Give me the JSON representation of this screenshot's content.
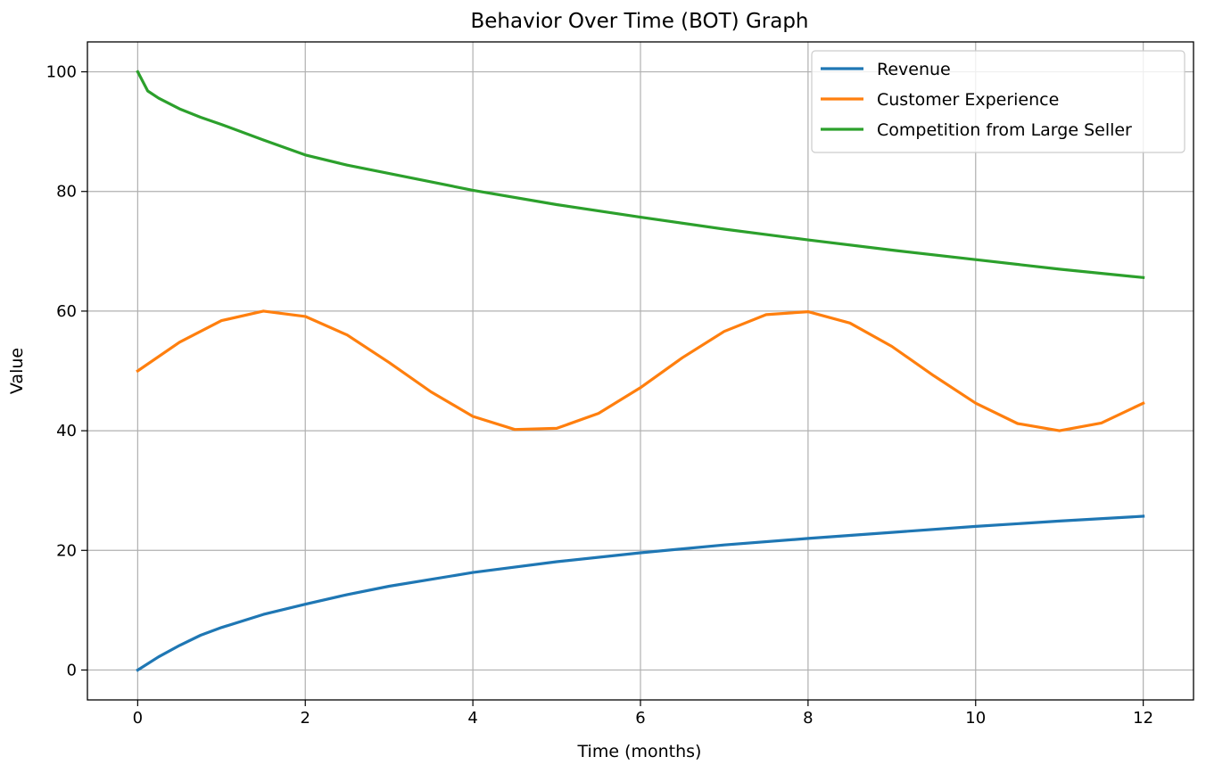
{
  "chart_data": {
    "type": "line",
    "title": "Behavior Over Time (BOT) Graph",
    "xlabel": "Time (months)",
    "ylabel": "Value",
    "xlim": [
      -0.6,
      12.6
    ],
    "ylim": [
      -5,
      105
    ],
    "x_ticks": [
      0,
      2,
      4,
      6,
      8,
      10,
      12
    ],
    "y_ticks": [
      0,
      20,
      40,
      60,
      80,
      100
    ],
    "grid": true,
    "legend_position": "top-right",
    "series": [
      {
        "name": "Revenue",
        "color": "#1f77b4",
        "x": [
          0,
          0.25,
          0.5,
          0.75,
          1,
          1.5,
          2,
          2.5,
          3,
          4,
          5,
          6,
          7,
          8,
          9,
          10,
          11,
          12
        ],
        "y": [
          0,
          2.2,
          4.1,
          5.8,
          7.1,
          9.3,
          11.0,
          12.6,
          14.0,
          16.3,
          18.1,
          19.6,
          20.9,
          22.0,
          23.0,
          24.0,
          24.9,
          25.7
        ]
      },
      {
        "name": "Customer Experience",
        "color": "#ff7f0e",
        "x": [
          0,
          0.5,
          1,
          1.5,
          2,
          2.5,
          3,
          3.5,
          4,
          4.5,
          5,
          5.5,
          6,
          6.5,
          7,
          7.5,
          8,
          8.5,
          9,
          9.5,
          10,
          10.5,
          11,
          11.5,
          12
        ],
        "y": [
          50,
          54.8,
          58.4,
          60.0,
          59.1,
          56.0,
          51.4,
          46.5,
          42.4,
          40.2,
          40.4,
          42.9,
          47.2,
          52.2,
          56.6,
          59.4,
          59.9,
          58.0,
          54.1,
          49.2,
          44.6,
          41.2,
          40.0,
          41.3,
          44.6
        ]
      },
      {
        "name": "Competition from Large Seller",
        "color": "#2ca02c",
        "x": [
          0,
          0.12,
          0.25,
          0.5,
          0.75,
          1,
          1.5,
          2,
          2.5,
          3,
          4,
          5,
          6,
          7,
          8,
          9,
          10,
          11,
          12
        ],
        "y": [
          100,
          96.8,
          95.6,
          93.8,
          92.4,
          91.2,
          88.6,
          86.1,
          84.4,
          83.0,
          80.2,
          77.8,
          75.7,
          73.7,
          71.9,
          70.2,
          68.6,
          67.0,
          65.6
        ]
      }
    ]
  }
}
